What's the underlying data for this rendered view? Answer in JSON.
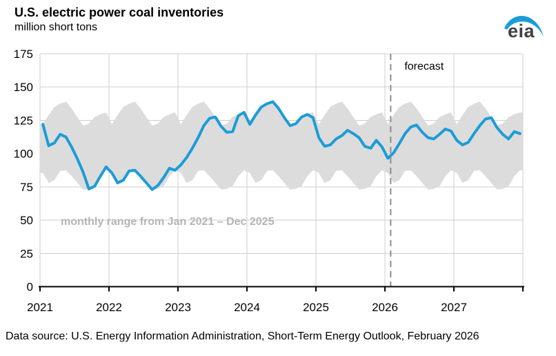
{
  "header": {
    "title": "U.S. electric power coal inventories",
    "subtitle": "million short tons"
  },
  "logo": {
    "text": "eia"
  },
  "chart_data": {
    "type": "line",
    "title": "U.S. electric power coal inventories",
    "ylabel": "million short tons",
    "x_unit": "month",
    "x_range": [
      "Jan 2021",
      "Dec 2027"
    ],
    "x_tick_labels": [
      "2021",
      "2022",
      "2023",
      "2024",
      "2025",
      "2026",
      "2027"
    ],
    "y_ticks": [
      0,
      25,
      50,
      75,
      100,
      125,
      150,
      175
    ],
    "ylim": [
      0,
      175
    ],
    "grid": true,
    "forecast_start_label": "Feb 2026",
    "forecast_start_index": 61,
    "series": [
      {
        "name": "U.S. electric power coal inventories",
        "color": "#1b9cd8",
        "values": [
          122,
          106,
          108,
          114.5,
          112.5,
          105,
          96,
          86,
          73.5,
          75.5,
          83,
          90,
          85.5,
          78,
          80,
          87,
          87.5,
          83,
          78,
          73,
          76,
          82,
          89,
          87.5,
          91.5,
          97,
          104,
          112,
          121,
          126.5,
          127.5,
          120.5,
          116,
          116.5,
          128.5,
          131,
          122,
          129,
          135,
          137.5,
          139,
          134,
          127,
          121,
          122.5,
          127.5,
          129.5,
          127,
          112,
          105.5,
          106.5,
          111,
          113.5,
          117.5,
          115,
          112,
          105.5,
          104,
          110,
          105,
          96.5,
          100.5,
          107.5,
          115,
          120,
          121.5,
          116,
          112,
          111,
          114.5,
          118.5,
          117,
          110,
          106.5,
          108.5,
          115,
          121,
          126,
          127,
          119.5,
          114.5,
          111,
          116.5,
          115
        ]
      }
    ],
    "band": {
      "name": "monthly range from Jan 2021 – Dec 2025",
      "color": "#dcdcdc",
      "upper_by_month": [
        122,
        129,
        135,
        137.5,
        139,
        134,
        127.5,
        121,
        122.5,
        127.5,
        129.5,
        131
      ],
      "lower_by_month": [
        85.5,
        78,
        80,
        87,
        87.5,
        83,
        78,
        73,
        73.5,
        75.5,
        83,
        87.5
      ]
    },
    "annotations": {
      "forecast_label": "forecast",
      "range_label": "monthly range from Jan 2021 – Dec 2025"
    },
    "colors": {
      "line": "#1b9cd8",
      "band": "#dcdcdc",
      "grid": "#cccccc",
      "axis": "#000000",
      "forecast_divider": "#8c8c8c",
      "range_label_text": "#b4b4b4",
      "tick_label_text": "#000000"
    }
  },
  "footer": {
    "source": "Data source: U.S. Energy Information Administration, Short-Term Energy Outlook, February 2026"
  }
}
